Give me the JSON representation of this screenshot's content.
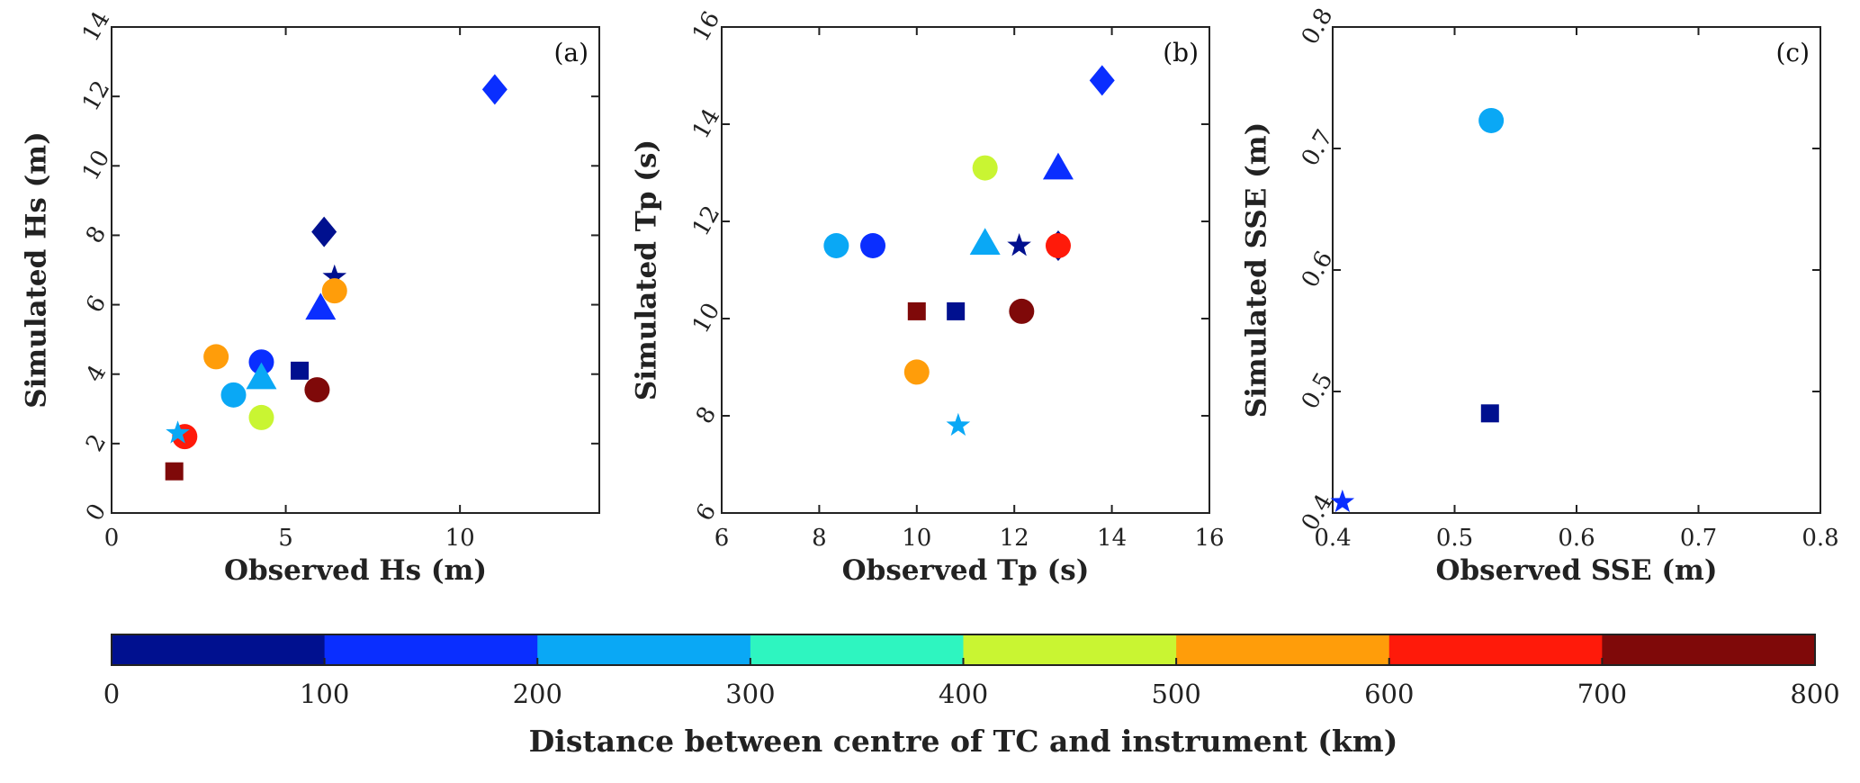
{
  "chart_data": [
    {
      "type": "scatter",
      "panel_label": "(a)",
      "xlabel": "Observed Hs (m)",
      "ylabel": "Simulated Hs (m)",
      "xlim": [
        0,
        14
      ],
      "ylim": [
        0,
        14
      ],
      "xticks": [
        0,
        5,
        10
      ],
      "yticks": [
        0,
        2,
        4,
        6,
        8,
        10,
        12,
        14
      ],
      "points": [
        {
          "x": 11.0,
          "y": 12.2,
          "marker": "diamond",
          "color": "#0a2eff"
        },
        {
          "x": 6.1,
          "y": 8.1,
          "marker": "diamond",
          "color": "#00108f"
        },
        {
          "x": 6.4,
          "y": 6.8,
          "marker": "star",
          "color": "#00108f"
        },
        {
          "x": 6.4,
          "y": 6.4,
          "marker": "circle",
          "color": "#ff9d0a"
        },
        {
          "x": 6.0,
          "y": 5.9,
          "marker": "triangle",
          "color": "#0a2eff"
        },
        {
          "x": 3.0,
          "y": 4.5,
          "marker": "circle",
          "color": "#ff9d0a"
        },
        {
          "x": 4.3,
          "y": 4.35,
          "marker": "circle",
          "color": "#0a2eff"
        },
        {
          "x": 5.4,
          "y": 4.1,
          "marker": "square",
          "color": "#00108f"
        },
        {
          "x": 4.3,
          "y": 3.9,
          "marker": "triangle",
          "color": "#0aa8f5"
        },
        {
          "x": 5.9,
          "y": 3.55,
          "marker": "circle",
          "color": "#7f0909"
        },
        {
          "x": 3.5,
          "y": 3.4,
          "marker": "circle",
          "color": "#0aa8f5"
        },
        {
          "x": 4.3,
          "y": 2.75,
          "marker": "circle",
          "color": "#c9f532"
        },
        {
          "x": 2.1,
          "y": 2.2,
          "marker": "circle",
          "color": "#ff1a0a"
        },
        {
          "x": 1.9,
          "y": 2.3,
          "marker": "star",
          "color": "#0aa8f5"
        },
        {
          "x": 1.8,
          "y": 1.2,
          "marker": "square",
          "color": "#7f0909"
        }
      ]
    },
    {
      "type": "scatter",
      "panel_label": "(b)",
      "xlabel": "Observed Tp (s)",
      "ylabel": "Simulated Tp (s)",
      "xlim": [
        6,
        16
      ],
      "ylim": [
        6,
        16
      ],
      "xticks": [
        6,
        8,
        10,
        12,
        14,
        16
      ],
      "yticks": [
        6,
        8,
        10,
        12,
        14,
        16
      ],
      "points": [
        {
          "x": 13.8,
          "y": 14.9,
          "marker": "diamond",
          "color": "#0a2eff"
        },
        {
          "x": 12.9,
          "y": 13.1,
          "marker": "triangle",
          "color": "#0a2eff"
        },
        {
          "x": 11.4,
          "y": 13.1,
          "marker": "circle",
          "color": "#c9f532"
        },
        {
          "x": 11.4,
          "y": 11.55,
          "marker": "triangle",
          "color": "#0aa8f5"
        },
        {
          "x": 12.9,
          "y": 11.5,
          "marker": "diamond",
          "color": "#00108f"
        },
        {
          "x": 12.1,
          "y": 11.5,
          "marker": "star",
          "color": "#00108f"
        },
        {
          "x": 12.9,
          "y": 11.5,
          "marker": "circle",
          "color": "#ff1a0a"
        },
        {
          "x": 8.35,
          "y": 11.5,
          "marker": "circle",
          "color": "#0aa8f5"
        },
        {
          "x": 9.1,
          "y": 11.5,
          "marker": "circle",
          "color": "#0a2eff"
        },
        {
          "x": 10.0,
          "y": 10.15,
          "marker": "square",
          "color": "#7f0909"
        },
        {
          "x": 10.8,
          "y": 10.15,
          "marker": "square",
          "color": "#00108f"
        },
        {
          "x": 12.15,
          "y": 10.15,
          "marker": "circle",
          "color": "#7f0909"
        },
        {
          "x": 10.0,
          "y": 8.9,
          "marker": "circle",
          "color": "#ff9d0a"
        },
        {
          "x": 10.85,
          "y": 7.8,
          "marker": "star",
          "color": "#0aa8f5"
        }
      ]
    },
    {
      "type": "scatter",
      "panel_label": "(c)",
      "xlabel": "Observed SSE (m)",
      "ylabel": "Simulated SSE (m)",
      "xlim": [
        0.4,
        0.8
      ],
      "ylim": [
        0.4,
        0.8
      ],
      "xticks": [
        0.4,
        0.5,
        0.6,
        0.7,
        0.8
      ],
      "yticks": [
        0.4,
        0.5,
        0.6,
        0.7,
        0.8
      ],
      "points": [
        {
          "x": 0.53,
          "y": 0.723,
          "marker": "circle",
          "color": "#0aa8f5"
        },
        {
          "x": 0.529,
          "y": 0.482,
          "marker": "square",
          "color": "#00108f"
        },
        {
          "x": 0.408,
          "y": 0.409,
          "marker": "star",
          "color": "#0a2eff"
        }
      ]
    }
  ],
  "colorbar": {
    "label": "Distance between centre of TC and instrument (km)",
    "range": [
      0,
      800
    ],
    "ticks": [
      0,
      100,
      200,
      300,
      400,
      500,
      600,
      700,
      800
    ],
    "colors": [
      "#00108f",
      "#0a2eff",
      "#0aa8f5",
      "#2ef5c0",
      "#c9f532",
      "#ff9d0a",
      "#ff1a0a",
      "#7f0909"
    ]
  }
}
